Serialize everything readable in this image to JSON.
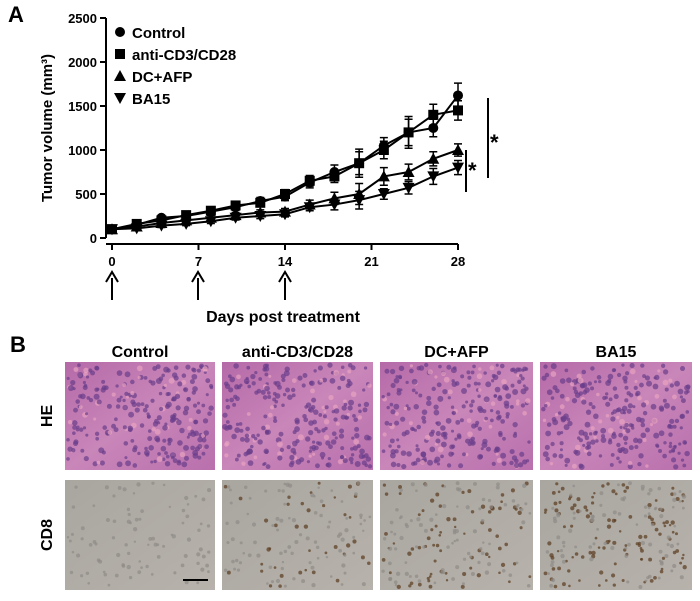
{
  "chart_data": {
    "type": "line",
    "panel_label": "A",
    "xlabel": "Days post treatment",
    "ylabel": "Tumor volume (mm³)",
    "x": [
      0,
      2,
      4,
      6,
      8,
      10,
      12,
      14,
      16,
      18,
      20,
      22,
      24,
      26,
      28
    ],
    "xlim": [
      0,
      28
    ],
    "xticks": [
      0,
      7,
      14,
      21,
      28
    ],
    "ylim": [
      0,
      2500
    ],
    "yticks": [
      0,
      500,
      1000,
      1500,
      2000,
      2500
    ],
    "legend": "upper-left",
    "annotations": [
      "*",
      "*"
    ],
    "series": [
      {
        "name": "Control",
        "color": "#000000",
        "marker": "circle",
        "values": [
          100,
          150,
          230,
          250,
          300,
          350,
          420,
          470,
          630,
          750,
          850,
          1050,
          1200,
          1250,
          1620
        ],
        "errors": [
          20,
          20,
          25,
          30,
          30,
          35,
          40,
          45,
          60,
          80,
          160,
          90,
          150,
          100,
          140
        ]
      },
      {
        "name": "anti-CD3/CD28",
        "color": "#000000",
        "marker": "square",
        "values": [
          100,
          160,
          200,
          260,
          310,
          370,
          400,
          500,
          650,
          700,
          850,
          1000,
          1200,
          1400,
          1450
        ],
        "errors": [
          20,
          25,
          25,
          30,
          35,
          40,
          40,
          50,
          60,
          70,
          130,
          100,
          180,
          120,
          110
        ]
      },
      {
        "name": "DC+AFP",
        "color": "#000000",
        "marker": "triangle-up",
        "values": [
          100,
          130,
          170,
          200,
          230,
          260,
          290,
          300,
          380,
          450,
          500,
          700,
          750,
          900,
          1000
        ],
        "errors": [
          20,
          20,
          20,
          25,
          25,
          30,
          30,
          35,
          50,
          70,
          120,
          100,
          90,
          80,
          70
        ]
      },
      {
        "name": "BA15",
        "color": "#000000",
        "marker": "triangle-down",
        "values": [
          100,
          110,
          140,
          160,
          190,
          230,
          250,
          270,
          350,
          380,
          430,
          500,
          570,
          700,
          800
        ],
        "errors": [
          15,
          15,
          20,
          20,
          25,
          25,
          30,
          30,
          40,
          60,
          100,
          60,
          70,
          90,
          80
        ]
      }
    ]
  },
  "panel_b": {
    "panel_label": "B",
    "columns": [
      "Control",
      "anti-CD3/CD28",
      "DC+AFP",
      "BA15"
    ],
    "rows": [
      "HE",
      "CD8"
    ]
  }
}
